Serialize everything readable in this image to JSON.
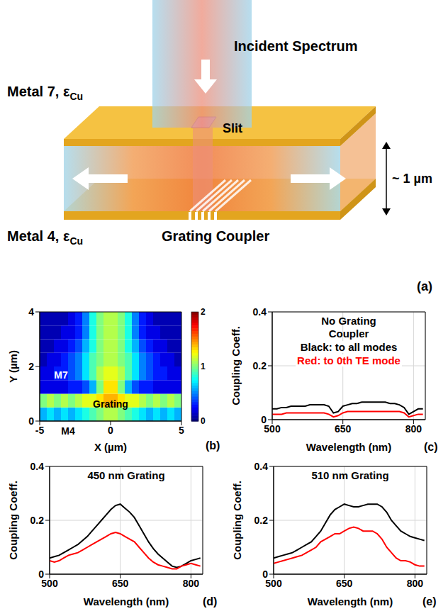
{
  "diagram": {
    "panel": "(a)",
    "incident": "Incident Spectrum",
    "top_metal": {
      "text": "Metal 7, ε",
      "subscript": "Cu"
    },
    "slit": "Slit",
    "gap": "~ 1 µm",
    "bottom_metal": {
      "text": "Metal 4, ε",
      "subscript": "Cu"
    },
    "grating": "Grating Coupler"
  },
  "chart_data": [
    {
      "type": "heatmap",
      "panel": "(b)",
      "x_label": "X (µm)",
      "y_label": "Y (µm)",
      "xlim": [
        -5,
        5
      ],
      "xticks": [
        -5,
        0,
        5
      ],
      "ylim": [
        0,
        4
      ],
      "yticks": [
        0,
        2,
        4
      ],
      "annotations": [
        "M7",
        "Grating",
        "M4"
      ],
      "x": [
        -4.75,
        -4.25,
        -3.75,
        -3.25,
        -2.75,
        -2.25,
        -1.75,
        -1.25,
        -0.75,
        -0.25,
        0.25,
        0.75,
        1.25,
        1.75,
        2.25,
        2.75,
        3.25,
        3.75,
        4.25,
        4.75
      ],
      "y": [
        0.25,
        0.75,
        1.25,
        1.75,
        2.25,
        2.75,
        3.25,
        3.75
      ],
      "cells": [
        [
          0.6,
          0.7,
          0.6,
          0.7,
          0.6,
          0.7,
          0.8,
          0.9,
          1.0,
          1.1,
          1.1,
          1.0,
          0.9,
          0.8,
          0.7,
          0.6,
          0.7,
          0.6,
          0.7,
          0.6
        ],
        [
          1.0,
          1.1,
          1.0,
          1.1,
          1.0,
          1.1,
          1.2,
          1.2,
          1.3,
          1.4,
          1.4,
          1.3,
          1.2,
          1.2,
          1.1,
          1.0,
          1.1,
          1.0,
          1.1,
          1.0
        ],
        [
          0.2,
          0.2,
          0.2,
          0.2,
          0.3,
          0.3,
          0.4,
          0.6,
          1.0,
          1.3,
          1.3,
          1.0,
          0.6,
          0.4,
          0.3,
          0.3,
          0.2,
          0.2,
          0.2,
          0.2
        ],
        [
          0.2,
          0.2,
          0.3,
          0.3,
          0.4,
          0.5,
          0.7,
          0.9,
          1.1,
          1.2,
          1.2,
          1.1,
          0.9,
          0.7,
          0.5,
          0.4,
          0.3,
          0.3,
          0.2,
          0.2
        ],
        [
          0.1,
          0.2,
          0.2,
          0.3,
          0.4,
          0.5,
          0.7,
          0.9,
          1.0,
          1.1,
          1.1,
          1.0,
          0.9,
          0.7,
          0.5,
          0.4,
          0.3,
          0.2,
          0.2,
          0.1
        ],
        [
          0.1,
          0.1,
          0.2,
          0.2,
          0.3,
          0.4,
          0.6,
          0.8,
          1.0,
          1.1,
          1.1,
          1.0,
          0.8,
          0.6,
          0.4,
          0.3,
          0.2,
          0.2,
          0.1,
          0.1
        ],
        [
          0.1,
          0.1,
          0.1,
          0.2,
          0.2,
          0.3,
          0.5,
          0.8,
          1.0,
          1.1,
          1.1,
          1.0,
          0.8,
          0.5,
          0.3,
          0.2,
          0.2,
          0.1,
          0.1,
          0.1
        ],
        [
          0.1,
          0.1,
          0.1,
          0.1,
          0.2,
          0.3,
          0.5,
          0.8,
          1.0,
          1.1,
          1.1,
          1.0,
          0.8,
          0.5,
          0.3,
          0.2,
          0.1,
          0.1,
          0.1,
          0.1
        ]
      ],
      "colorbar_range": [
        0,
        2
      ],
      "colorbar_ticks": [
        0,
        1,
        2
      ]
    },
    {
      "type": "line",
      "panel": "(c)",
      "annotations": [
        "No Grating Coupler"
      ],
      "x_label": "Wavelength (nm)",
      "y_label": "Coupling Coeff.",
      "xlim": [
        500,
        825
      ],
      "xticks": [
        500,
        650,
        800
      ],
      "ylim": [
        0,
        0.4
      ],
      "yticks": [
        0,
        0.2,
        0.4
      ],
      "grid": true,
      "x": [
        500,
        510,
        520,
        530,
        540,
        550,
        560,
        570,
        580,
        590,
        600,
        610,
        620,
        630,
        640,
        650,
        660,
        670,
        680,
        690,
        700,
        710,
        720,
        730,
        740,
        750,
        760,
        770,
        780,
        790,
        800,
        810,
        820
      ],
      "series": [
        {
          "name": "Black: to all modes",
          "color": "#000000",
          "values": [
            0.04,
            0.04,
            0.045,
            0.045,
            0.05,
            0.05,
            0.05,
            0.05,
            0.055,
            0.055,
            0.055,
            0.055,
            0.05,
            0.025,
            0.03,
            0.05,
            0.055,
            0.06,
            0.06,
            0.065,
            0.065,
            0.065,
            0.065,
            0.065,
            0.065,
            0.06,
            0.06,
            0.055,
            0.045,
            0.02,
            0.03,
            0.04,
            0.04
          ]
        },
        {
          "name": "Red: to 0th TE mode",
          "color": "#ff0000",
          "values": [
            0.02,
            0.02,
            0.02,
            0.025,
            0.025,
            0.025,
            0.025,
            0.025,
            0.025,
            0.025,
            0.025,
            0.025,
            0.02,
            0.01,
            0.015,
            0.025,
            0.03,
            0.03,
            0.03,
            0.03,
            0.03,
            0.03,
            0.03,
            0.03,
            0.03,
            0.03,
            0.03,
            0.03,
            0.025,
            0.01,
            0.015,
            0.02,
            0.02
          ]
        }
      ]
    },
    {
      "type": "line",
      "panel": "(d)",
      "annotations": [
        "450 nm Grating"
      ],
      "x_label": "Wavelength (nm)",
      "y_label": "Coupling Coeff.",
      "xlim": [
        500,
        825
      ],
      "xticks": [
        500,
        650,
        800
      ],
      "ylim": [
        0,
        0.4
      ],
      "yticks": [
        0,
        0.2,
        0.4
      ],
      "grid": true,
      "x": [
        500,
        510,
        520,
        530,
        540,
        550,
        560,
        570,
        580,
        590,
        600,
        610,
        620,
        630,
        640,
        650,
        660,
        670,
        680,
        690,
        700,
        710,
        720,
        730,
        740,
        750,
        760,
        770,
        780,
        790,
        800,
        810,
        820
      ],
      "series": [
        {
          "color": "#000000",
          "values": [
            0.06,
            0.065,
            0.07,
            0.08,
            0.09,
            0.1,
            0.11,
            0.125,
            0.14,
            0.16,
            0.18,
            0.2,
            0.22,
            0.24,
            0.255,
            0.26,
            0.245,
            0.23,
            0.21,
            0.18,
            0.15,
            0.12,
            0.095,
            0.075,
            0.06,
            0.045,
            0.03,
            0.025,
            0.03,
            0.04,
            0.05,
            0.055,
            0.06
          ]
        },
        {
          "color": "#ff0000",
          "values": [
            0.05,
            0.045,
            0.05,
            0.06,
            0.07,
            0.075,
            0.08,
            0.09,
            0.1,
            0.11,
            0.12,
            0.13,
            0.14,
            0.15,
            0.155,
            0.15,
            0.14,
            0.13,
            0.12,
            0.1,
            0.08,
            0.06,
            0.045,
            0.035,
            0.03,
            0.025,
            0.02,
            0.02,
            0.03,
            0.035,
            0.04,
            0.035,
            0.03
          ]
        }
      ]
    },
    {
      "type": "line",
      "panel": "(e)",
      "annotations": [
        "510 nm Grating"
      ],
      "x_label": "Wavelength (nm)",
      "y_label": "Coupling Coeff.",
      "xlim": [
        500,
        825
      ],
      "xticks": [
        500,
        650,
        800
      ],
      "ylim": [
        0,
        0.4
      ],
      "yticks": [
        0,
        0.2,
        0.4
      ],
      "grid": true,
      "x": [
        500,
        510,
        520,
        530,
        540,
        550,
        560,
        570,
        580,
        590,
        600,
        610,
        620,
        630,
        640,
        650,
        660,
        670,
        680,
        690,
        700,
        710,
        720,
        730,
        740,
        750,
        760,
        770,
        780,
        790,
        800,
        810,
        820
      ],
      "series": [
        {
          "color": "#000000",
          "values": [
            0.06,
            0.065,
            0.07,
            0.075,
            0.08,
            0.09,
            0.1,
            0.11,
            0.12,
            0.14,
            0.16,
            0.19,
            0.22,
            0.24,
            0.25,
            0.26,
            0.255,
            0.25,
            0.25,
            0.255,
            0.26,
            0.26,
            0.26,
            0.25,
            0.23,
            0.2,
            0.18,
            0.16,
            0.15,
            0.14,
            0.135,
            0.13,
            0.125
          ]
        },
        {
          "color": "#ff0000",
          "values": [
            0.04,
            0.045,
            0.05,
            0.055,
            0.06,
            0.065,
            0.07,
            0.08,
            0.09,
            0.1,
            0.12,
            0.13,
            0.14,
            0.15,
            0.15,
            0.16,
            0.17,
            0.175,
            0.17,
            0.16,
            0.16,
            0.16,
            0.15,
            0.13,
            0.1,
            0.08,
            0.06,
            0.05,
            0.05,
            0.045,
            0.035,
            0.03,
            0.03
          ]
        }
      ]
    }
  ]
}
